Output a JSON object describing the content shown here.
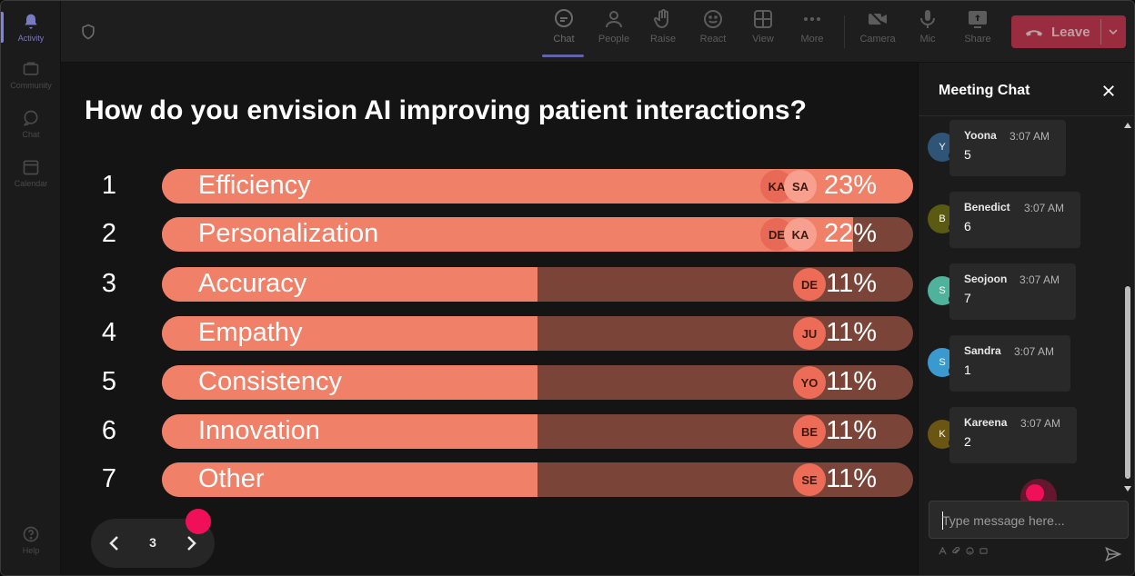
{
  "rail": {
    "items": [
      {
        "label": "Activity",
        "icon": "bell-icon"
      },
      {
        "label": "Community",
        "icon": "community-icon"
      },
      {
        "label": "Chat",
        "icon": "chat-icon"
      },
      {
        "label": "Calendar",
        "icon": "calendar-icon"
      },
      {
        "label": "Help",
        "icon": "help-icon"
      }
    ]
  },
  "toolbar": {
    "chat": "Chat",
    "people": "People",
    "raise": "Raise",
    "react": "React",
    "view": "View",
    "more": "More",
    "camera": "Camera",
    "mic": "Mic",
    "share": "Share",
    "leave": "Leave"
  },
  "poll": {
    "question": "How do you envision AI improving patient interactions?",
    "options": [
      {
        "rank": "1",
        "label": "Efficiency",
        "percent": "23%",
        "fill": 1.0,
        "avatars": [
          "KA",
          "SA"
        ]
      },
      {
        "rank": "2",
        "label": "Personalization",
        "percent": "22%",
        "fill": 0.92,
        "avatars": [
          "DE",
          "KA"
        ]
      },
      {
        "rank": "3",
        "label": "Accuracy",
        "percent": "11%",
        "fill": 0.5,
        "avatars": [
          "DE"
        ]
      },
      {
        "rank": "4",
        "label": "Empathy",
        "percent": "11%",
        "fill": 0.5,
        "avatars": [
          "JU"
        ]
      },
      {
        "rank": "5",
        "label": "Consistency",
        "percent": "11%",
        "fill": 0.5,
        "avatars": [
          "YO"
        ]
      },
      {
        "rank": "6",
        "label": "Innovation",
        "percent": "11%",
        "fill": 0.5,
        "avatars": [
          "BE"
        ]
      },
      {
        "rank": "7",
        "label": "Other",
        "percent": "11%",
        "fill": 0.5,
        "avatars": [
          "SE"
        ]
      }
    ]
  },
  "pager": {
    "current": "3"
  },
  "chat": {
    "title": "Meeting Chat",
    "messages": [
      {
        "initial": "Y",
        "name": "Yoona",
        "time": "3:07 AM",
        "text": "5",
        "color": "#2e5577"
      },
      {
        "initial": "B",
        "name": "Benedict",
        "time": "3:07 AM",
        "text": "6",
        "color": "#5a5a12"
      },
      {
        "initial": "S",
        "name": "Seojoon",
        "time": "3:07 AM",
        "text": "7",
        "color": "#4fb39c"
      },
      {
        "initial": "S",
        "name": "Sandra",
        "time": "3:07 AM",
        "text": "1",
        "color": "#3a9ad0"
      },
      {
        "initial": "K",
        "name": "Kareena",
        "time": "3:07 AM",
        "text": "2",
        "color": "#6a5512"
      }
    ],
    "placeholder": "Type message here..."
  },
  "colors": {
    "accent": "#6264a7",
    "bar_fill": "#f08067",
    "bar_track": "#7a4538",
    "leave": "#c4314b",
    "cursor": "#f0105a"
  }
}
